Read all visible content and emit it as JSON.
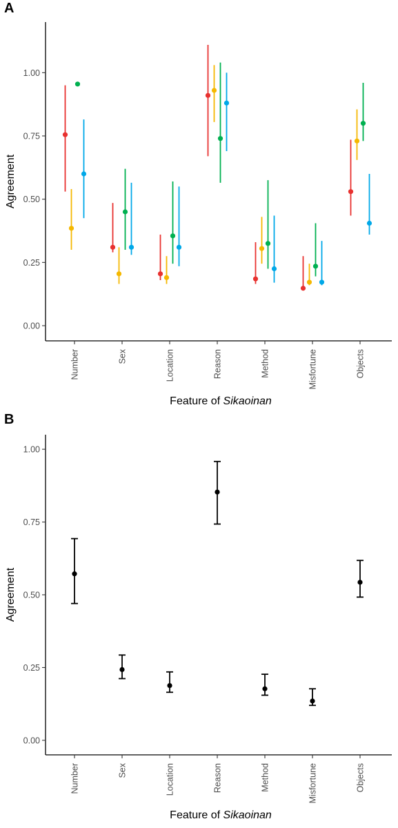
{
  "chart_data": [
    {
      "panel": "A",
      "type": "scatter",
      "xlabel_prefix": "Feature of ",
      "xlabel_italic": "Sikaoinan",
      "ylabel": "Agreement",
      "categories": [
        "Number",
        "Sex",
        "Location",
        "Reason",
        "Method",
        "Misfortune",
        "Objects"
      ],
      "ylim": [
        -0.06,
        1.2
      ],
      "yticks": [
        0.0,
        0.25,
        0.5,
        0.75,
        1.0
      ],
      "ytick_labels": [
        "0.00",
        "0.25",
        "0.50",
        "0.75",
        "1.00"
      ],
      "grid": false,
      "series": [
        {
          "color": "#e8312f",
          "values": [
            0.755,
            0.31,
            0.205,
            0.91,
            0.185,
            0.148,
            0.53
          ],
          "lower": [
            0.53,
            0.29,
            0.18,
            0.67,
            0.165,
            0.14,
            0.435
          ],
          "upper": [
            0.95,
            0.485,
            0.36,
            1.11,
            0.33,
            0.275,
            0.735
          ]
        },
        {
          "color": "#f5b800",
          "values": [
            0.385,
            0.205,
            0.19,
            0.93,
            0.305,
            0.172,
            0.73
          ],
          "lower": [
            0.3,
            0.165,
            0.165,
            0.805,
            0.245,
            0.16,
            0.655
          ],
          "upper": [
            0.54,
            0.31,
            0.275,
            1.03,
            0.43,
            0.245,
            0.855
          ]
        },
        {
          "color": "#00b050",
          "values": [
            0.955,
            0.45,
            0.355,
            0.74,
            0.325,
            0.235,
            0.8
          ],
          "lower": [
            0.955,
            0.3,
            0.245,
            0.565,
            0.225,
            0.195,
            0.73
          ],
          "upper": [
            0.955,
            0.62,
            0.57,
            1.04,
            0.575,
            0.405,
            0.96
          ]
        },
        {
          "color": "#00a8e8",
          "values": [
            0.6,
            0.31,
            0.31,
            0.88,
            0.225,
            0.172,
            0.405
          ],
          "lower": [
            0.425,
            0.28,
            0.235,
            0.69,
            0.17,
            0.16,
            0.36
          ],
          "upper": [
            0.815,
            0.565,
            0.55,
            1.0,
            0.435,
            0.335,
            0.6
          ]
        }
      ]
    },
    {
      "panel": "B",
      "type": "scatter",
      "xlabel_prefix": "Feature of ",
      "xlabel_italic": "Sikaoinan",
      "ylabel": "Agreement",
      "categories": [
        "Number",
        "Sex",
        "Location",
        "Reason",
        "Method",
        "Misfortune",
        "Objects"
      ],
      "ylim": [
        -0.05,
        1.05
      ],
      "yticks": [
        0.0,
        0.25,
        0.5,
        0.75,
        1.0
      ],
      "ytick_labels": [
        "0.00",
        "0.25",
        "0.50",
        "0.75",
        "1.00"
      ],
      "grid": false,
      "series": [
        {
          "color": "#000000",
          "values": [
            0.572,
            0.243,
            0.188,
            0.853,
            0.177,
            0.135,
            0.543
          ],
          "lower": [
            0.47,
            0.212,
            0.165,
            0.743,
            0.155,
            0.12,
            0.492
          ],
          "upper": [
            0.693,
            0.293,
            0.235,
            0.958,
            0.227,
            0.177,
            0.618
          ]
        }
      ]
    }
  ]
}
